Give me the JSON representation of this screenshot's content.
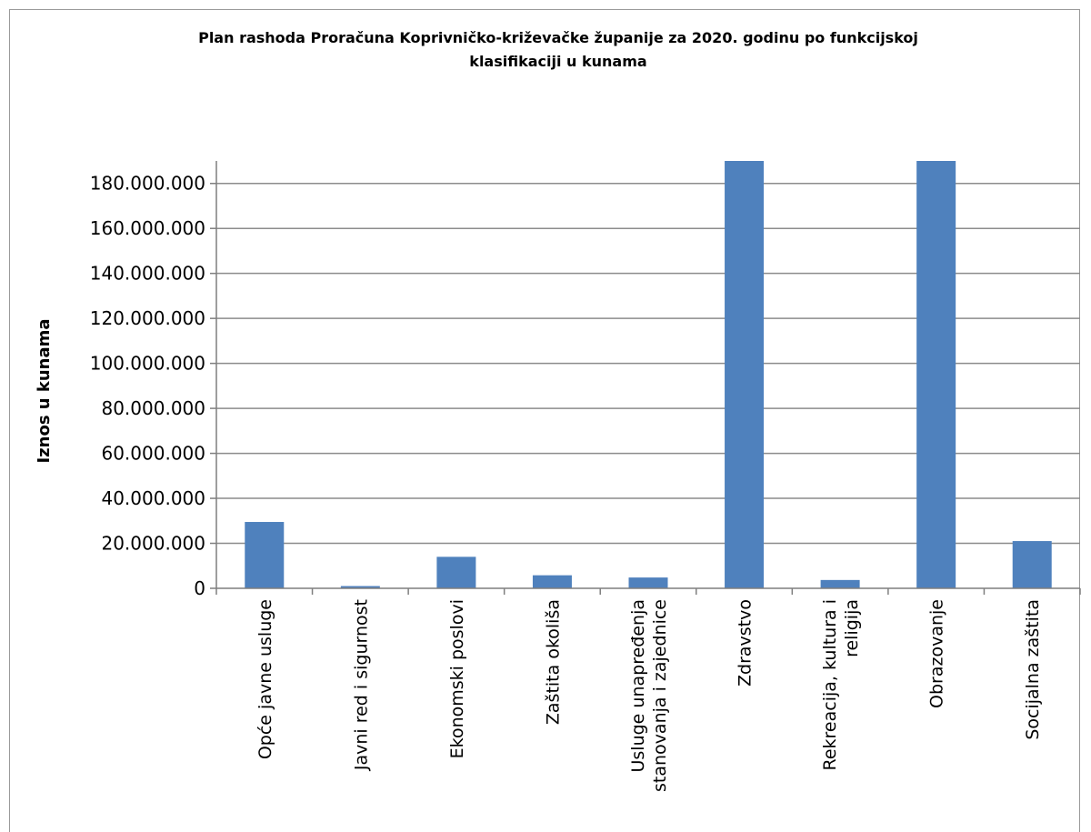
{
  "chart_data": {
    "type": "bar",
    "title_lines": [
      "Plan rashoda Proračuna Koprivničko-križevačke županije za 2020. godinu po funkcijskoj",
      "klasifikaciji  u kunama"
    ],
    "ylabel": "Iznos u kunama",
    "xlabel": "",
    "ylim": [
      0,
      190000000
    ],
    "yticks": [
      0,
      20000000,
      40000000,
      60000000,
      80000000,
      100000000,
      120000000,
      140000000,
      160000000,
      180000000
    ],
    "ytick_labels": [
      "0",
      "20.000.000",
      "40.000.000",
      "60.000.000",
      "80.000.000",
      "100.000.000",
      "120.000.000",
      "140.000.000",
      "160.000.000",
      "180.000.000"
    ],
    "grid": true,
    "bar_color": "#4f81bd",
    "categories": [
      [
        "Opće javne usluge"
      ],
      [
        "Javni red i sigurnost"
      ],
      [
        "Ekonomski poslovi"
      ],
      [
        "Zaštita okoliša"
      ],
      [
        "Usluge unapređenja",
        "stanovanja i zajednice"
      ],
      [
        "Zdravstvo"
      ],
      [
        "Rekreacija, kultura i",
        "religija"
      ],
      [
        "Obrazovanje"
      ],
      [
        "Socijalna zaštita"
      ]
    ],
    "values": [
      29500000,
      1000000,
      14000000,
      5800000,
      4800000,
      190000000,
      3700000,
      190000000,
      21000000
    ]
  }
}
